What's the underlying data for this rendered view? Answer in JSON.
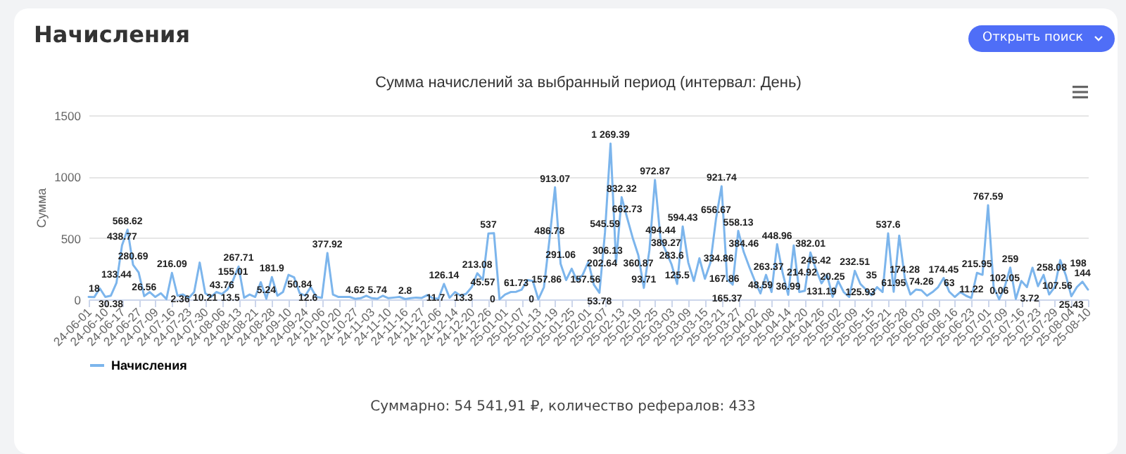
{
  "chart_data": {
    "type": "line",
    "title": "Сумма начислений за выбранный период (интервал: День)",
    "ylabel": "Сумма",
    "annotations": [
      "Начисления",
      "Открыть поиск",
      "Суммарно: 54 541,91 ₽, количество рефералов: 433"
    ],
    "categories": [
      "24-06-01",
      null,
      null,
      "24-06-10",
      null,
      null,
      "24-06-17",
      null,
      null,
      "24-06-27",
      null,
      null,
      "24-07-09",
      null,
      null,
      "24-07-16",
      null,
      null,
      "24-07-23",
      null,
      null,
      "24-07-30",
      null,
      null,
      "24-08-06",
      null,
      null,
      "24-08-13",
      null,
      null,
      "24-08-21",
      null,
      null,
      "24-08-28",
      null,
      null,
      "24-09-10",
      null,
      null,
      "24-09-24",
      null,
      null,
      "24-10-06",
      null,
      null,
      "24-10-20",
      null,
      null,
      "24-10-27",
      null,
      null,
      "24-11-03",
      null,
      null,
      "24-11-10",
      null,
      null,
      "24-11-16",
      null,
      null,
      "24-11-27",
      null,
      null,
      "24-12-06",
      null,
      null,
      "24-12-14",
      null,
      null,
      "24-12-20",
      null,
      null,
      "24-12-26",
      null,
      null,
      "25-01-01",
      null,
      null,
      "25-01-07",
      null,
      null,
      "25-01-13",
      null,
      null,
      "25-01-19",
      null,
      null,
      "25-01-25",
      null,
      null,
      "25-02-01",
      null,
      null,
      "25-02-07",
      null,
      null,
      "25-02-13",
      null,
      null,
      "25-02-19",
      null,
      null,
      "25-02-25",
      null,
      null,
      "25-03-03",
      null,
      null,
      "25-03-09",
      null,
      null,
      "25-03-15",
      null,
      null,
      "25-03-21",
      null,
      null,
      "25-03-27",
      null,
      null,
      "25-04-02",
      null,
      null,
      "25-04-08",
      null,
      null,
      "25-04-14",
      null,
      null,
      "25-04-20",
      null,
      null,
      "25-04-26",
      null,
      null,
      "25-05-02",
      null,
      null,
      "25-05-09",
      null,
      null,
      "25-05-15",
      null,
      null,
      "25-05-21",
      null,
      null,
      "25-05-28",
      null,
      null,
      "25-06-03",
      null,
      null,
      "25-06-09",
      null,
      null,
      "25-06-16",
      null,
      null,
      "25-06-23",
      null,
      null,
      "25-07-01",
      null,
      null,
      "25-07-09",
      null,
      null,
      "25-07-16",
      null,
      null,
      "25-07-23",
      null,
      null,
      "25-07-29",
      null,
      null,
      "25-08-04",
      null,
      null,
      "25-08-10"
    ],
    "series": [
      {
        "name": "Начисления",
        "color": "#7cb5ec",
        "values": [
          20,
          18,
          90,
          20,
          30.38,
          133.44,
          438.77,
          568.62,
          280.69,
          220,
          26.56,
          60,
          20,
          50,
          2.36,
          216.09,
          30,
          40,
          10.21,
          60,
          300,
          50,
          20,
          60,
          43.76,
          80,
          155.01,
          267.71,
          13.5,
          40,
          20,
          140,
          5.24,
          181.9,
          30,
          60,
          200,
          180,
          50.84,
          30,
          100,
          20,
          12.6,
          377.92,
          40,
          20,
          20,
          20,
          4.62,
          10,
          30,
          10,
          5.74,
          30,
          10,
          15,
          20,
          2.8,
          10,
          15,
          11.7,
          35,
          10,
          5,
          126.14,
          13.3,
          60,
          30,
          45.57,
          100,
          213.08,
          160,
          537,
          540,
          0,
          40,
          60,
          61.73,
          80,
          157.86,
          150,
          0,
          100,
          486.78,
          913.07,
          291.06,
          157.56,
          250,
          150,
          202.64,
          306.13,
          120,
          53.78,
          545.59,
          1269.39,
          300,
          832.32,
          662.73,
          500,
          360.87,
          93.71,
          400,
          972.87,
          494.44,
          389.27,
          283.6,
          125.5,
          594.43,
          300,
          150,
          334.86,
          167.86,
          300,
          656.67,
          921.74,
          165.37,
          120,
          558.13,
          384.46,
          263.37,
          150,
          48.59,
          200,
          60,
          448.96,
          214.92,
          36.99,
          440,
          60,
          70,
          382.01,
          245.42,
          131.19,
          200,
          20.25,
          150,
          60,
          20,
          232.51,
          125.93,
          80,
          35,
          100,
          60,
          537.6,
          61.95,
          520,
          174.28,
          40,
          80,
          74.26,
          30,
          60,
          100,
          174.45,
          63,
          20,
          60,
          30,
          11.22,
          215.95,
          200,
          767.59,
          100,
          0.06,
          102.05,
          259,
          3.72,
          150,
          100,
          258.08,
          107.56,
          200,
          40,
          100,
          320,
          198,
          25.43,
          100,
          144,
          80
        ],
        "value_labels": [
          null,
          "18",
          null,
          null,
          "30.38",
          "133.44",
          "438.77",
          "568.62",
          "280.69",
          null,
          "26.56",
          null,
          null,
          null,
          "2.36",
          "216.09",
          null,
          null,
          "10.21",
          null,
          null,
          null,
          null,
          null,
          "43.76",
          null,
          "155.01",
          "267.71",
          "13.5",
          null,
          null,
          null,
          "5.24",
          "181.9",
          null,
          null,
          null,
          null,
          "50.84",
          null,
          null,
          null,
          "12.6",
          "377.92",
          null,
          null,
          null,
          null,
          "4.62",
          null,
          null,
          null,
          "5.74",
          null,
          null,
          null,
          null,
          "2.8",
          null,
          null,
          "11.7",
          null,
          null,
          null,
          "126.14",
          "13.3",
          null,
          null,
          "45.57",
          null,
          "213.08",
          null,
          "537",
          null,
          "0",
          null,
          null,
          "61.73",
          null,
          "157.86",
          null,
          "0",
          null,
          "486.78",
          "913.07",
          "291.06",
          "157.56",
          null,
          null,
          "202.64",
          "306.13",
          null,
          "53.78",
          "545.59",
          "1 269.39",
          null,
          "832.32",
          "662.73",
          null,
          "360.87",
          "93.71",
          null,
          "972.87",
          "494.44",
          "389.27",
          "283.6",
          "125.5",
          "594.43",
          null,
          null,
          "334.86",
          "167.86",
          null,
          "656.67",
          "921.74",
          "165.37",
          null,
          "558.13",
          "384.46",
          "263.37",
          null,
          "48.59",
          null,
          null,
          "448.96",
          "214.92",
          "36.99",
          null,
          null,
          null,
          "382.01",
          "245.42",
          "131.19",
          null,
          "20.25",
          null,
          null,
          null,
          "232.51",
          "125.93",
          null,
          "35",
          null,
          null,
          "537.6",
          "61.95",
          null,
          "174.28",
          null,
          null,
          "74.26",
          null,
          null,
          null,
          "174.45",
          "63",
          null,
          null,
          null,
          "11.22",
          "215.95",
          null,
          "767.59",
          null,
          "0.06",
          "102.05",
          "259",
          "3.72",
          null,
          null,
          "258.08",
          "107.56",
          null,
          null,
          null,
          null,
          "198",
          "25.43",
          null,
          "144",
          null
        ]
      }
    ],
    "ylim": [
      0,
      1500
    ],
    "yticks": [
      0,
      500,
      1000,
      1500
    ],
    "grid": "y",
    "legend": "bottom"
  }
}
